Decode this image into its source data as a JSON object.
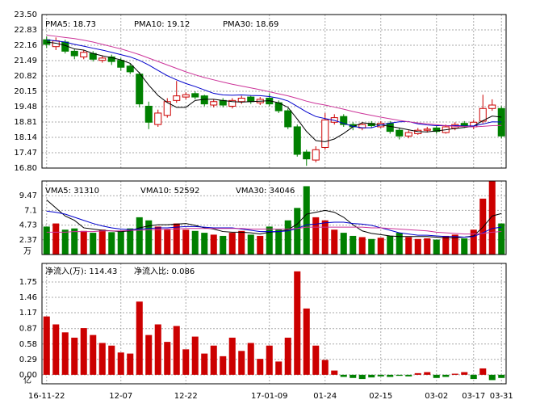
{
  "chart_data": [
    {
      "type": "candlestick",
      "open": [
        22.4,
        22.1,
        22.3,
        21.9,
        21.65,
        21.8,
        21.5,
        21.65,
        21.5,
        21.25,
        20.9,
        19.5,
        18.7,
        19.1,
        19.75,
        19.9,
        20.05,
        19.95,
        19.55,
        19.75,
        19.5,
        19.7,
        19.9,
        19.65,
        19.85,
        19.65,
        19.3,
        18.6,
        17.5,
        17.15,
        17.7,
        18.8,
        19.05,
        18.7,
        18.55,
        18.75,
        18.6,
        18.75,
        18.45,
        18.2,
        18.3,
        18.45,
        18.55,
        18.35,
        18.55,
        18.75,
        18.6,
        18.85,
        19.4,
        19.4
      ],
      "close": [
        22.2,
        22.35,
        21.9,
        21.7,
        21.85,
        21.55,
        21.6,
        21.45,
        21.2,
        21.0,
        19.6,
        18.8,
        19.2,
        19.7,
        19.95,
        20.0,
        19.9,
        19.6,
        19.7,
        19.55,
        19.75,
        19.85,
        19.7,
        19.8,
        19.6,
        19.3,
        18.6,
        17.4,
        17.2,
        17.6,
        18.9,
        19.0,
        18.7,
        18.6,
        18.7,
        18.65,
        18.75,
        18.4,
        18.2,
        18.35,
        18.45,
        18.5,
        18.4,
        18.6,
        18.7,
        18.65,
        18.8,
        19.4,
        19.55,
        18.2
      ],
      "high": [
        22.55,
        22.5,
        22.4,
        22.0,
        21.95,
        21.9,
        21.7,
        21.75,
        21.6,
        21.35,
        21.0,
        19.7,
        19.35,
        19.85,
        20.6,
        20.1,
        20.15,
        20.0,
        19.8,
        19.85,
        19.85,
        19.95,
        19.95,
        19.9,
        20.05,
        19.75,
        19.4,
        18.7,
        17.6,
        17.75,
        19.2,
        19.15,
        19.15,
        18.8,
        18.8,
        18.85,
        18.85,
        18.85,
        18.55,
        18.45,
        18.55,
        18.6,
        18.65,
        18.7,
        18.8,
        18.85,
        18.9,
        20.0,
        19.8,
        19.5
      ],
      "low": [
        22.05,
        21.95,
        21.8,
        21.55,
        21.55,
        21.45,
        21.4,
        21.3,
        21.05,
        20.9,
        19.45,
        18.5,
        18.6,
        19.0,
        19.65,
        19.8,
        19.8,
        19.5,
        19.45,
        19.45,
        19.4,
        19.6,
        19.6,
        19.55,
        19.5,
        19.2,
        18.5,
        17.3,
        16.9,
        17.05,
        17.6,
        18.7,
        18.6,
        18.45,
        18.45,
        18.55,
        18.55,
        18.3,
        18.05,
        18.1,
        18.25,
        18.35,
        18.3,
        18.3,
        18.45,
        18.55,
        18.5,
        18.75,
        19.3,
        18.1
      ],
      "up_color": "#cc0000",
      "down_color": "#008000",
      "series": [
        {
          "name": "PMA5: 18.73",
          "color": "#000000",
          "values": [
            22.3,
            22.25,
            22.15,
            22.0,
            21.95,
            21.8,
            21.7,
            21.62,
            21.52,
            21.37,
            20.95,
            20.42,
            19.97,
            19.66,
            19.45,
            19.45,
            19.75,
            19.8,
            19.8,
            19.75,
            19.7,
            19.68,
            19.7,
            19.72,
            19.74,
            19.65,
            19.45,
            18.94,
            18.4,
            18.0,
            17.95,
            18.07,
            18.31,
            18.6,
            18.78,
            18.73,
            18.68,
            18.62,
            18.55,
            18.47,
            18.39,
            18.38,
            18.42,
            18.47,
            18.53,
            18.57,
            18.63,
            18.87,
            19.07,
            19.02
          ]
        },
        {
          "name": "PMA10: 19.12",
          "color": "#0000cc",
          "values": [
            22.4,
            22.35,
            22.3,
            22.2,
            22.12,
            22.03,
            21.95,
            21.85,
            21.75,
            21.65,
            21.5,
            21.3,
            21.06,
            20.83,
            20.65,
            20.49,
            20.36,
            20.21,
            20.06,
            19.99,
            19.98,
            19.99,
            19.97,
            19.96,
            19.92,
            19.85,
            19.73,
            19.49,
            19.25,
            19.05,
            18.96,
            18.88,
            18.75,
            18.62,
            18.56,
            18.56,
            18.68,
            18.76,
            18.82,
            18.83,
            18.73,
            18.68,
            18.65,
            18.65,
            18.65,
            18.64,
            18.64,
            18.72,
            18.82,
            18.81
          ]
        },
        {
          "name": "PMA30: 18.69",
          "color": "#cc3399",
          "values": [
            22.6,
            22.55,
            22.5,
            22.45,
            22.38,
            22.3,
            22.2,
            22.1,
            22.0,
            21.88,
            21.75,
            21.6,
            21.45,
            21.3,
            21.15,
            21.0,
            20.87,
            20.75,
            20.65,
            20.55,
            20.46,
            20.38,
            20.3,
            20.22,
            20.13,
            20.04,
            19.95,
            19.84,
            19.72,
            19.62,
            19.55,
            19.46,
            19.37,
            19.27,
            19.18,
            19.1,
            19.02,
            18.95,
            18.88,
            18.82,
            18.77,
            18.73,
            18.69,
            18.65,
            18.62,
            18.61,
            18.6,
            18.62,
            18.65,
            18.66
          ]
        }
      ],
      "ylim": [
        16.8,
        23.5
      ],
      "yticks": [
        {
          "value": 23.5,
          "label": "23.50"
        },
        22.83,
        22.16,
        21.49,
        20.82,
        20.15,
        19.48,
        18.81,
        18.14,
        17.47,
        {
          "value": 16.8,
          "label": "16.80"
        }
      ],
      "grid": true
    },
    {
      "type": "volume",
      "values": [
        4.5,
        5.0,
        4.0,
        4.2,
        3.8,
        3.5,
        4.0,
        3.6,
        3.8,
        4.2,
        6.0,
        5.5,
        4.5,
        4.0,
        5.0,
        4.0,
        3.8,
        3.5,
        3.2,
        3.0,
        3.5,
        3.8,
        3.2,
        3.0,
        4.5,
        4.0,
        5.5,
        7.5,
        11.0,
        6.0,
        5.5,
        4.0,
        3.5,
        3.0,
        2.8,
        2.5,
        2.7,
        3.0,
        3.5,
        2.8,
        2.5,
        2.6,
        2.4,
        3.0,
        3.2,
        2.6,
        4.0,
        9.0,
        11.8,
        5.0
      ],
      "series": [
        {
          "name": "VMA5: 31310",
          "color": "#000000",
          "values": [
            8.8,
            7.5,
            6.2,
            5.5,
            4.3,
            4.1,
            3.9,
            3.8,
            3.7,
            3.8,
            4.3,
            4.6,
            4.8,
            4.8,
            4.9,
            5.0,
            4.7,
            4.3,
            4.1,
            3.7,
            3.6,
            3.6,
            3.5,
            3.3,
            3.6,
            3.7,
            4.0,
            4.9,
            6.5,
            6.8,
            7.1,
            6.8,
            6.0,
            4.8,
            3.8,
            3.4,
            3.2,
            3.0,
            2.9,
            2.9,
            2.9,
            2.9,
            2.8,
            2.7,
            2.7,
            2.8,
            3.0,
            4.4,
            6.2,
            6.6
          ]
        },
        {
          "name": "VMA10: 52592",
          "color": "#0000cc",
          "values": [
            7.0,
            6.8,
            6.5,
            6.0,
            5.5,
            5.0,
            4.6,
            4.3,
            4.1,
            4.0,
            4.1,
            4.2,
            4.3,
            4.3,
            4.4,
            4.5,
            4.5,
            4.4,
            4.3,
            4.3,
            4.3,
            4.1,
            3.9,
            3.7,
            3.7,
            3.7,
            3.8,
            4.2,
            4.8,
            4.9,
            5.1,
            5.2,
            5.2,
            5.0,
            4.9,
            4.7,
            4.3,
            3.9,
            3.5,
            3.3,
            3.1,
            3.1,
            3.0,
            2.9,
            2.9,
            2.8,
            2.9,
            3.5,
            4.2,
            4.4
          ]
        },
        {
          "name": "VMA30: 34046",
          "color": "#cc3399",
          "values": [
            3.6,
            3.6,
            3.6,
            3.7,
            3.7,
            3.7,
            3.8,
            3.8,
            3.8,
            3.9,
            3.9,
            4.0,
            4.0,
            4.1,
            4.1,
            4.2,
            4.2,
            4.2,
            4.2,
            4.2,
            4.2,
            4.2,
            4.1,
            4.1,
            4.1,
            4.1,
            4.1,
            4.2,
            4.4,
            4.4,
            4.4,
            4.4,
            4.4,
            4.4,
            4.4,
            4.3,
            4.3,
            4.2,
            4.1,
            4.0,
            3.9,
            3.8,
            3.6,
            3.5,
            3.4,
            3.3,
            3.3,
            3.4,
            3.6,
            3.7
          ]
        }
      ],
      "unit_label": "万",
      "ylim": [
        0,
        11.84
      ],
      "yticks": [
        9.47,
        7.1,
        4.73,
        2.37
      ],
      "grid": true
    },
    {
      "type": "bar",
      "legend": [
        "净流入(万): 114.43",
        "净流入比: 0.086"
      ],
      "legend_colors": [
        "#cc0000",
        "#cc0000"
      ],
      "categories": [
        "16-11-22",
        null,
        null,
        null,
        null,
        null,
        null,
        null,
        "12-07",
        null,
        null,
        null,
        null,
        null,
        null,
        "12-22",
        null,
        null,
        null,
        null,
        null,
        null,
        null,
        null,
        "17-01-09",
        null,
        null,
        null,
        null,
        null,
        "01-24",
        null,
        null,
        null,
        null,
        null,
        "02-15",
        null,
        null,
        null,
        null,
        null,
        "03-02",
        null,
        null,
        null,
        "03-17",
        null,
        null,
        "03-31"
      ],
      "values": [
        1.1,
        0.95,
        0.8,
        0.7,
        0.88,
        0.75,
        0.6,
        0.55,
        0.42,
        0.4,
        1.38,
        0.75,
        0.95,
        0.62,
        0.92,
        0.48,
        0.72,
        0.4,
        0.55,
        0.35,
        0.7,
        0.45,
        0.6,
        0.3,
        0.55,
        0.25,
        0.7,
        1.95,
        1.25,
        0.55,
        0.28,
        0.08,
        -0.04,
        -0.06,
        -0.08,
        -0.05,
        -0.03,
        -0.04,
        -0.02,
        -0.03,
        0.03,
        0.05,
        -0.06,
        -0.04,
        0.02,
        0.05,
        -0.08,
        0.12,
        -0.1,
        -0.06
      ],
      "positive_color": "#cc0000",
      "negative_color": "#008000",
      "unit_label": "亿",
      "ylim": [
        -0.17,
        2.1
      ],
      "yticks": [
        1.75,
        1.46,
        1.17,
        0.87,
        0.58,
        0.29,
        {
          "value": 0,
          "label": "0.00"
        }
      ],
      "grid": true
    }
  ]
}
